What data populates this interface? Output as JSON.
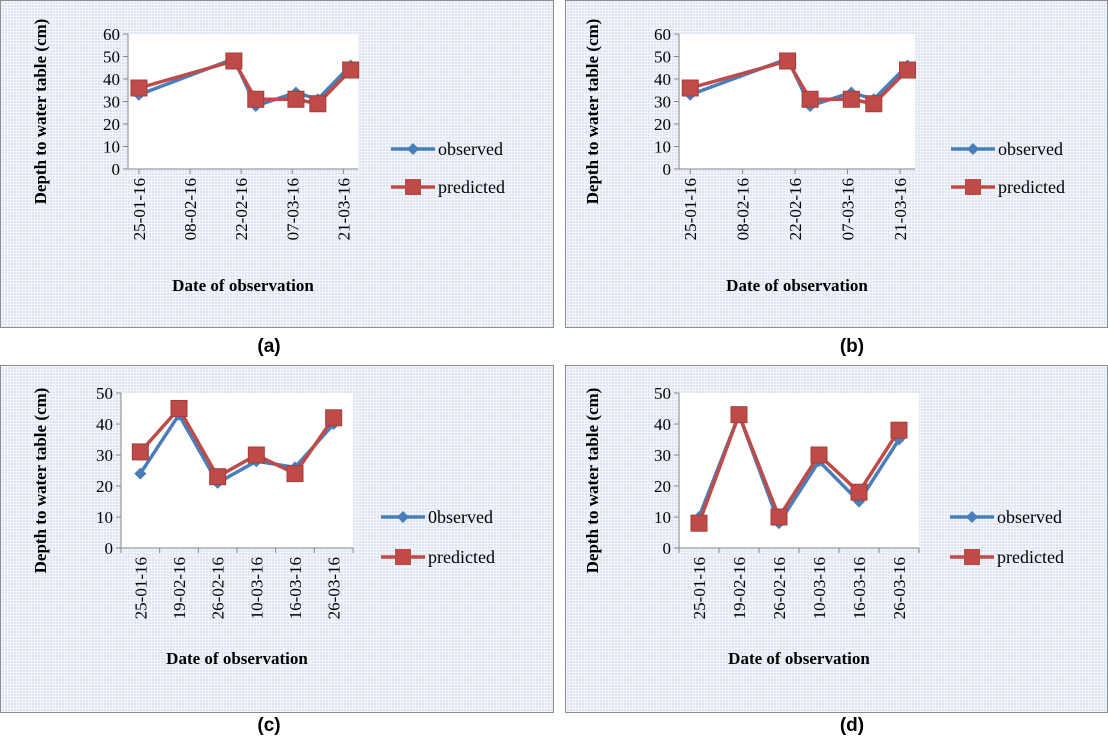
{
  "captions": [
    "(a)",
    "(b)",
    "(c)",
    "(d)"
  ],
  "colors": {
    "observed": "#4a7ebb",
    "predicted": "#be4b48"
  },
  "chart_data": [
    {
      "type": "line",
      "xlabel": "Date of observation",
      "ylabel": "Depth to water table (cm)",
      "ylim": [
        0,
        60
      ],
      "yticks": [
        0,
        10,
        20,
        30,
        40,
        50,
        60
      ],
      "xaxis": "date",
      "xlim": [
        "2016-01-22",
        "2016-03-25"
      ],
      "xticks": [
        "25-01-16",
        "08-02-16",
        "22-02-16",
        "07-03-16",
        "21-03-16"
      ],
      "x": [
        "2016-01-25",
        "2016-02-20",
        "2016-02-26",
        "2016-03-08",
        "2016-03-14",
        "2016-03-23"
      ],
      "series": [
        {
          "name": "observed",
          "values": [
            33,
            49,
            28,
            34,
            31,
            46
          ]
        },
        {
          "name": "predicted",
          "values": [
            36,
            48,
            31,
            31,
            29,
            44
          ]
        }
      ],
      "legend": "right",
      "grid": false
    },
    {
      "type": "line",
      "xlabel": "Date of observation",
      "ylabel": "Depth to water table (cm)",
      "ylim": [
        0,
        60
      ],
      "yticks": [
        0,
        10,
        20,
        30,
        40,
        50,
        60
      ],
      "xaxis": "date",
      "xlim": [
        "2016-01-22",
        "2016-03-25"
      ],
      "xticks": [
        "25-01-16",
        "08-02-16",
        "22-02-16",
        "07-03-16",
        "21-03-16"
      ],
      "x": [
        "2016-01-25",
        "2016-02-20",
        "2016-02-26",
        "2016-03-08",
        "2016-03-14",
        "2016-03-23"
      ],
      "series": [
        {
          "name": "observed",
          "values": [
            33,
            49,
            28,
            34,
            31,
            46
          ]
        },
        {
          "name": "predicted",
          "values": [
            36,
            48,
            31,
            31,
            29,
            44
          ]
        }
      ],
      "legend": "right",
      "grid": false
    },
    {
      "type": "line",
      "xlabel": "Date of observation",
      "ylabel": "Depth to water table (cm)",
      "ylim": [
        0,
        50
      ],
      "yticks": [
        0,
        10,
        20,
        30,
        40,
        50
      ],
      "xaxis": "category",
      "categories": [
        "25-01-16",
        "19-02-16",
        "26-02-16",
        "10-03-16",
        "16-03-16",
        "26-03-16"
      ],
      "series": [
        {
          "name": "0bserved",
          "values": [
            24,
            43,
            21,
            28,
            26,
            40
          ]
        },
        {
          "name": "predicted",
          "values": [
            31,
            45,
            23,
            30,
            24,
            42
          ]
        }
      ],
      "legend": "right",
      "grid": false
    },
    {
      "type": "line",
      "xlabel": "Date of observation",
      "ylabel": "Depth to water table (cm)",
      "ylim": [
        0,
        50
      ],
      "yticks": [
        0,
        10,
        20,
        30,
        40,
        50
      ],
      "xaxis": "category",
      "categories": [
        "25-01-16",
        "19-02-16",
        "26-02-16",
        "10-03-16",
        "16-03-16",
        "26-03-16"
      ],
      "series": [
        {
          "name": "observed",
          "values": [
            10,
            43,
            8,
            28,
            15,
            35
          ]
        },
        {
          "name": "predicted",
          "values": [
            8,
            43,
            10,
            30,
            18,
            38
          ]
        }
      ],
      "legend": "right",
      "grid": false
    }
  ]
}
